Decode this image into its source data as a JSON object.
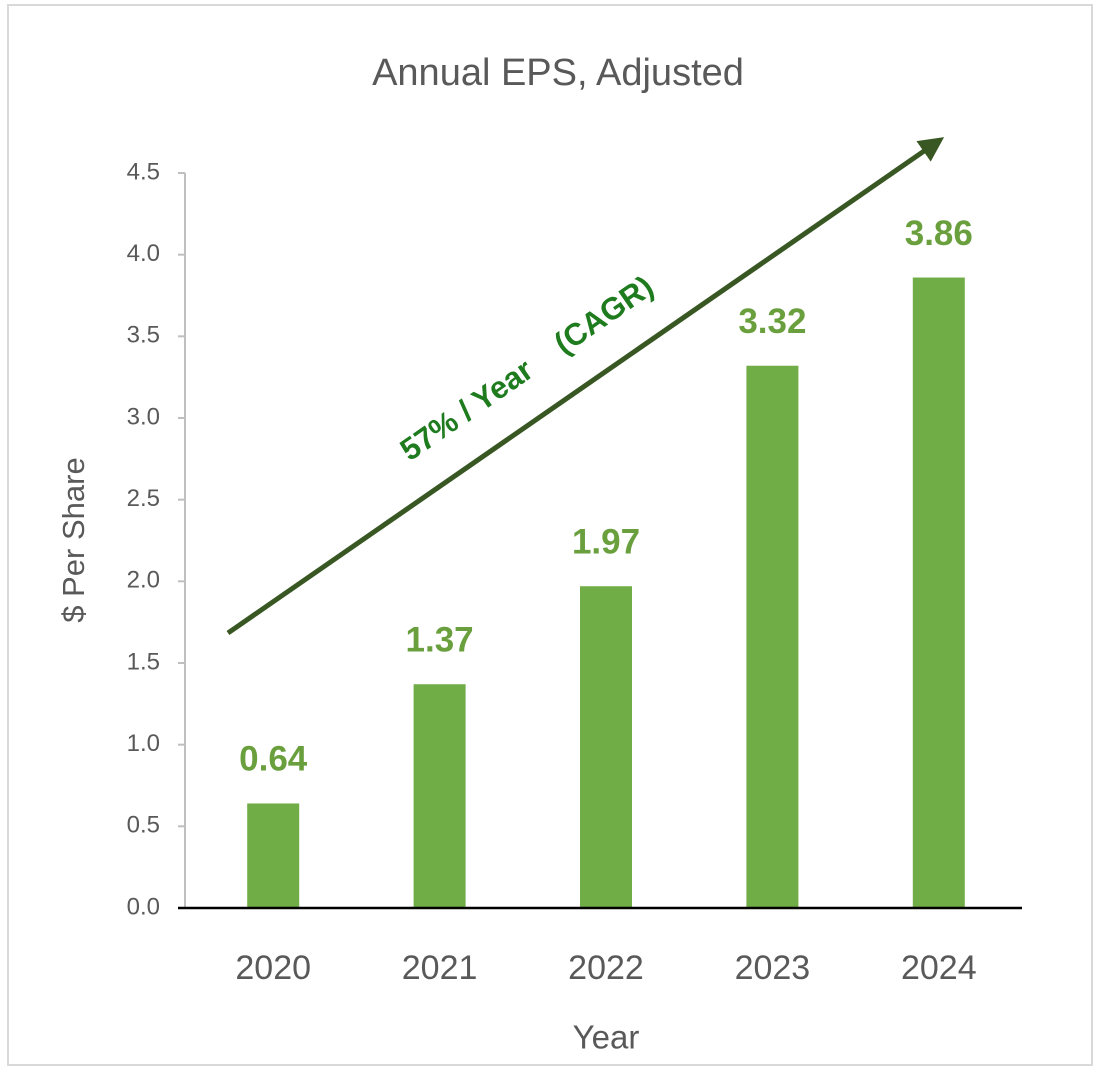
{
  "chart_data": {
    "type": "bar",
    "title": "Annual EPS, Adjusted",
    "x_label": "Year",
    "y_label": "$ Per Share",
    "annotation": "57% / Year    (CAGR)",
    "categories": [
      "2020",
      "2021",
      "2022",
      "2023",
      "2024"
    ],
    "values": [
      0.64,
      1.37,
      1.97,
      3.32,
      3.86
    ],
    "color": "#70ad47",
    "ylim": [
      0,
      4.5
    ],
    "yticks": [
      {
        "value": 0,
        "label": "0.0"
      },
      0.5,
      {
        "value": 1,
        "label": "1.0"
      },
      1.5,
      {
        "value": 2,
        "label": "2.0"
      },
      2.5,
      {
        "value": 3,
        "label": "3.0"
      },
      3.5,
      {
        "value": 4,
        "label": "4.0"
      },
      4.5
    ],
    "grid": false
  }
}
